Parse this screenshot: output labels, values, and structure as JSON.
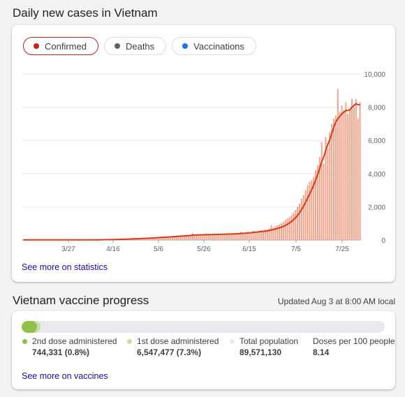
{
  "cases": {
    "title": "Daily new cases in Vietnam",
    "tabs": [
      {
        "label": "Confirmed",
        "color": "#c5221f",
        "active": true
      },
      {
        "label": "Deaths",
        "color": "#5f6368",
        "active": false
      },
      {
        "label": "Vaccinations",
        "color": "#1a73e8",
        "active": false
      }
    ],
    "link": "See more on statistics"
  },
  "chart_data": {
    "type": "bar",
    "title": "",
    "y_ticks": [
      "10,000",
      "8,000",
      "6,000",
      "4,000",
      "2,000",
      "0"
    ],
    "x_ticks": [
      "3/27",
      "4/16",
      "5/6",
      "5/26",
      "6/15",
      "7/5",
      "7/25"
    ],
    "ylim": [
      0,
      10000
    ],
    "bar_color": "#f4a48a",
    "line_color": "#d63a17",
    "series": [
      {
        "name": "Daily cases",
        "values": [
          12,
          8,
          10,
          5,
          9,
          7,
          14,
          6,
          11,
          9,
          8,
          10,
          15,
          12,
          7,
          9,
          6,
          11,
          8,
          13,
          10,
          9,
          12,
          7,
          11,
          8,
          10,
          14,
          9,
          12,
          10,
          8,
          11,
          13,
          9,
          15,
          12,
          18,
          22,
          16,
          25,
          30,
          20,
          35,
          28,
          40,
          33,
          45,
          52,
          38,
          60,
          55,
          70,
          65,
          80,
          75,
          90,
          85,
          110,
          95,
          120,
          105,
          130,
          140,
          115,
          150,
          135,
          160,
          170,
          145,
          190,
          175,
          210,
          180,
          220,
          200,
          240,
          260,
          230,
          270,
          250,
          290,
          240,
          310,
          420,
          280,
          330,
          300,
          320,
          280,
          350,
          310,
          330,
          300,
          340,
          320,
          360,
          330,
          380,
          340,
          370,
          400,
          360,
          380,
          350,
          390,
          420,
          380,
          500,
          460,
          430,
          480,
          450,
          470,
          550,
          520,
          500,
          560,
          600,
          580,
          650,
          620,
          700,
          900,
          750,
          800,
          880,
          950,
          1000,
          1100,
          1200,
          1300,
          1400,
          1500,
          1650,
          1800,
          2000,
          2200,
          2500,
          2700,
          3000,
          3300,
          3500,
          3600,
          3800,
          4200,
          4500,
          5000,
          5900,
          4600,
          6200,
          5500,
          6500,
          7000,
          7300,
          7500,
          9100,
          7700,
          8100,
          7800,
          8300,
          7600,
          7900,
          8500,
          8000,
          8500,
          7300,
          8300
        ],
        "smoothed": [
          10,
          10,
          9,
          9,
          9,
          9,
          9,
          9,
          9,
          9,
          9,
          9,
          10,
          10,
          10,
          10,
          10,
          9,
          9,
          9,
          10,
          10,
          10,
          10,
          10,
          10,
          10,
          11,
          11,
          11,
          11,
          10,
          10,
          11,
          11,
          12,
          13,
          14,
          16,
          17,
          19,
          21,
          22,
          25,
          27,
          30,
          32,
          36,
          40,
          43,
          47,
          51,
          56,
          61,
          66,
          70,
          75,
          80,
          86,
          92,
          98,
          104,
          111,
          118,
          123,
          130,
          137,
          145,
          152,
          158,
          167,
          174,
          184,
          190,
          198,
          206,
          215,
          226,
          233,
          242,
          250,
          259,
          265,
          274,
          295,
          300,
          305,
          309,
          311,
          313,
          318,
          323,
          326,
          328,
          331,
          333,
          336,
          338,
          345,
          346,
          350,
          356,
          360,
          363,
          365,
          370,
          378,
          380,
          395,
          405,
          413,
          423,
          432,
          441,
          455,
          470,
          480,
          492,
          507,
          521,
          537,
          551,
          570,
          605,
          630,
          660,
          693,
          730,
          770,
          820,
          880,
          950,
          1030,
          1110,
          1220,
          1340,
          1480,
          1640,
          1830,
          2030,
          2270,
          2520,
          2770,
          3030,
          3300,
          3600,
          3950,
          4300,
          4700,
          5000,
          5400,
          5750,
          6050,
          6400,
          6800,
          7100,
          7300,
          7450,
          7600,
          7700,
          7800,
          7800,
          7850,
          8000,
          8100,
          8200,
          8150,
          8150
        ]
      }
    ]
  },
  "vaccine": {
    "title": "Vietnam vaccine progress",
    "updated": "Updated Aug 3 at 8:00 AM local",
    "progress": {
      "second_dose_fraction": 0.008,
      "first_dose_fraction": 0.073
    },
    "legend": [
      {
        "label": "2nd dose administered",
        "value": "744,331 (0.8%)",
        "color": "#8fc04a"
      },
      {
        "label": "1st dose administered",
        "value": "6,547,477 (7.3%)",
        "color": "#c7dea4"
      },
      {
        "label": "Total population",
        "value": "89,571,130",
        "color": "#e8eaed"
      },
      {
        "label": "Doses per 100 people",
        "value": "8.14",
        "color": ""
      }
    ],
    "link": "See more on vaccines"
  }
}
